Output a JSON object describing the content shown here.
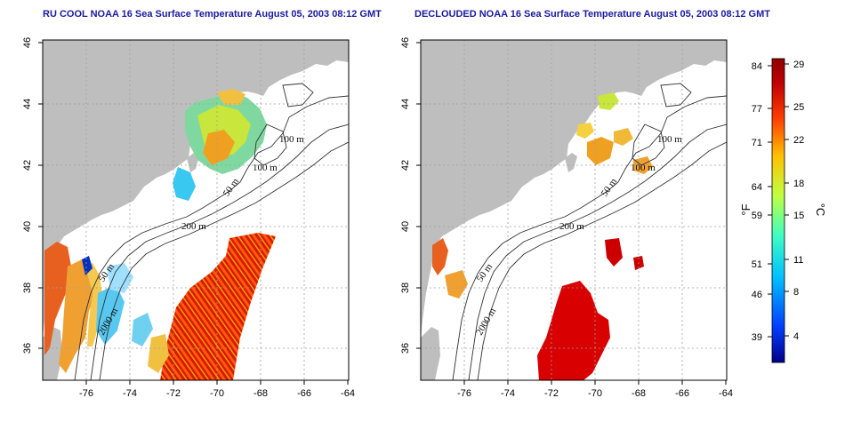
{
  "panels": [
    {
      "title": "RU COOL NOAA 16 Sea Surface Temperature August 05, 2003 08:12 GMT",
      "x_ticks": [
        "-76",
        "-74",
        "-72",
        "-70",
        "-68",
        "-66",
        "-64"
      ],
      "y_ticks": [
        "46",
        "44",
        "42",
        "40",
        "38",
        "36"
      ]
    },
    {
      "title": "DECLOUDED NOAA 16 Sea Surface Temperature August 05, 2003 08:12 GMT",
      "x_ticks": [
        "-76",
        "-74",
        "-72",
        "-70",
        "-68",
        "-66",
        "-64"
      ],
      "y_ticks": [
        "46",
        "44",
        "42",
        "40",
        "38",
        "36"
      ]
    }
  ],
  "isobath_labels": [
    "100 m",
    "100 m",
    "50 m",
    "200 m",
    "50 m",
    "2000 m"
  ],
  "colorbar": {
    "fahrenheit_ticks": [
      "84",
      "77",
      "71",
      "64",
      "59",
      "51",
      "46",
      "39"
    ],
    "celsius_ticks": [
      "29",
      "25",
      "22",
      "18",
      "15",
      "11",
      "8",
      "4"
    ],
    "fahrenheit_unit": "°F",
    "celsius_unit": "°C",
    "colors": [
      "#00008c",
      "#0040ff",
      "#00c0ff",
      "#40ffc0",
      "#c0ff40",
      "#ffc000",
      "#ff4000",
      "#c00000",
      "#900000"
    ]
  },
  "colors": {
    "land": "#bebebe",
    "title": "#1a1aa0",
    "grid": "#a0a0a0",
    "isobath": "#333333"
  }
}
